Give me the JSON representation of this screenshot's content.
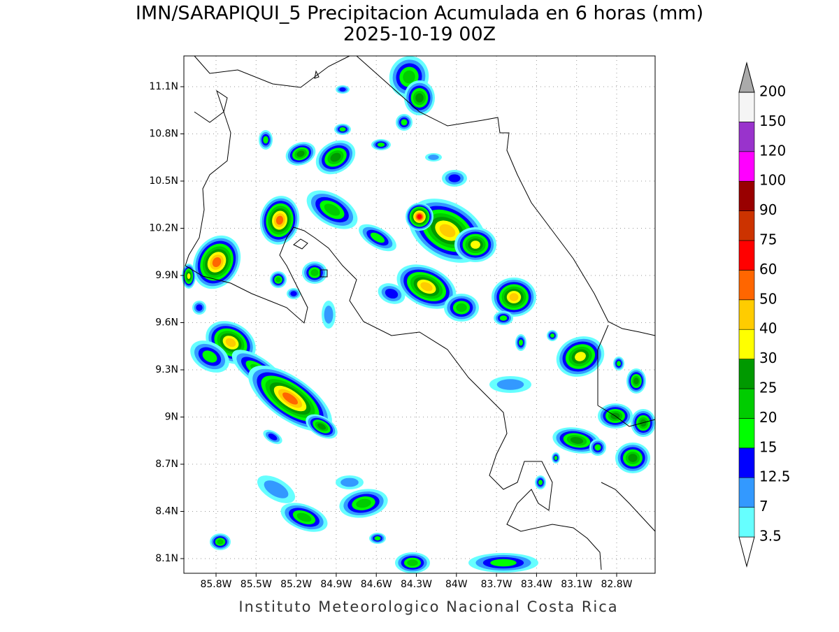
{
  "title": "IMN/SARAPIQUI_5 Precipitacion Acumulada en 6 horas (mm)",
  "subtitle": "2025-10-19 00Z",
  "map": {
    "lat_labels": [
      "11.1N",
      "10.8N",
      "10.5N",
      "10.2N",
      "9.9N",
      "9.6N",
      "9.3N",
      "9N",
      "8.7N",
      "8.4N",
      "8.1N"
    ],
    "lon_labels": [
      "85.8W",
      "85.5W",
      "85.2W",
      "84.9W",
      "84.6W",
      "84.3W",
      "84W",
      "83.7W",
      "83.4W",
      "83.1W",
      "82.8W"
    ]
  },
  "colorbar": {
    "labels": [
      "3.5",
      "7",
      "12.5",
      "15",
      "20",
      "25",
      "30",
      "40",
      "50",
      "60",
      "75",
      "90",
      "100",
      "120",
      "150",
      "200"
    ],
    "colors": [
      "#ffffff",
      "#66ffff",
      "#3399ff",
      "#0000ff",
      "#00ff00",
      "#00cc00",
      "#009900",
      "#ffff00",
      "#ffcc00",
      "#ff6600",
      "#ff0000",
      "#cc3300",
      "#990000",
      "#ff00ff",
      "#9933cc",
      "#f5f5f5",
      "#aaaaaa"
    ]
  },
  "footer": "Instituto Meteorologico Nacional Costa Rica"
}
